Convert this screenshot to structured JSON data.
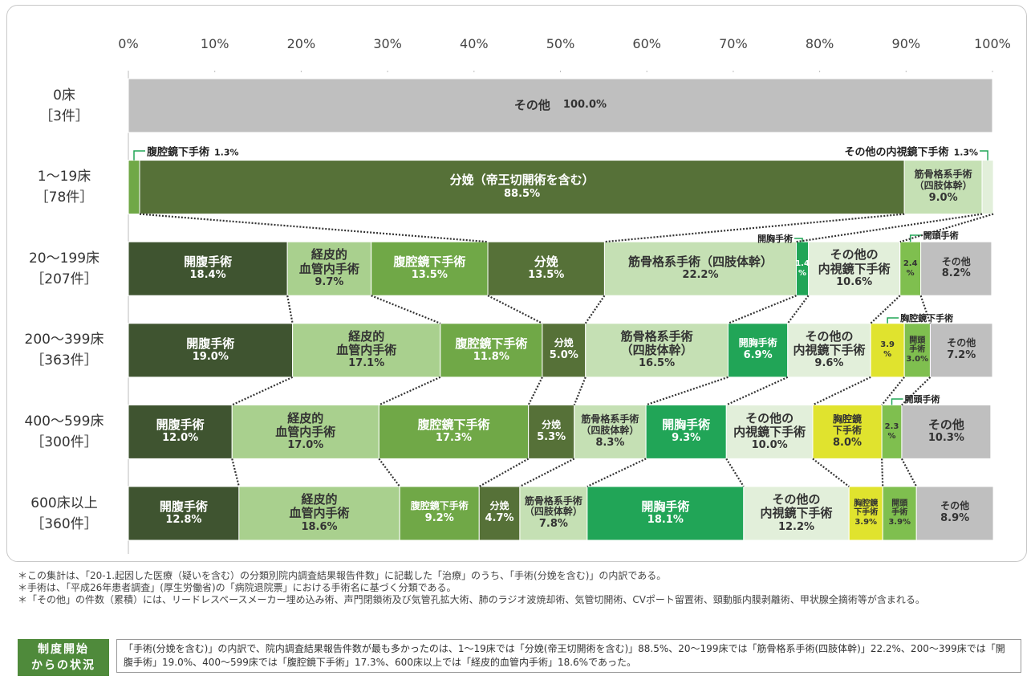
{
  "chart_data": {
    "type": "stacked-bar-horizontal",
    "categories": [
      "0床\n［3件］",
      "1～19床\n［78件］",
      "20～199床\n［207件］",
      "200～399床\n［363件］",
      "400～599床\n［300件］",
      "600床以上\n［360件］"
    ],
    "xlim": [
      0,
      100
    ],
    "xticks": [
      {
        "value": 0,
        "label": "0%"
      },
      {
        "value": 10,
        "label": "10%"
      },
      {
        "value": 20,
        "label": "20%"
      },
      {
        "value": 30,
        "label": "30%"
      },
      {
        "value": 40,
        "label": "40%"
      },
      {
        "value": 50,
        "label": "50%"
      },
      {
        "value": 60,
        "label": "60%"
      },
      {
        "value": 70,
        "label": "70%"
      },
      {
        "value": 80,
        "label": "80%"
      },
      {
        "value": 90,
        "label": "90%"
      },
      {
        "value": 100,
        "label": "100%"
      }
    ],
    "series": [
      {
        "color": "#3f5430",
        "labels": [
          null,
          null,
          "開腹手術",
          "開腹手術",
          "開腹手術",
          "開腹手術"
        ],
        "values": [
          null,
          null,
          18.4,
          19.0,
          12.0,
          12.8
        ],
        "value_labels": [
          null,
          null,
          "18.4%",
          "19.0%",
          "12.0%",
          "12.8%"
        ]
      },
      {
        "color": "#a9d08e",
        "labels": [
          null,
          null,
          "経皮的\n血管内手術",
          "経皮的\n血管内手術",
          "経皮的\n血管内手術",
          "経皮的\n血管内手術"
        ],
        "values": [
          null,
          null,
          9.7,
          17.1,
          17.0,
          18.6
        ],
        "value_labels": [
          null,
          null,
          "9.7%",
          "17.1%",
          "17.0%",
          "18.6%"
        ]
      },
      {
        "color": "#70a847",
        "labels": [
          null,
          "腹腔鏡下手術",
          "腹腔鏡下手術",
          "腹腔鏡下手術",
          "腹腔鏡下手術",
          "腹腔鏡下手術"
        ],
        "values": [
          null,
          1.3,
          13.5,
          11.8,
          17.3,
          9.2
        ],
        "value_labels": [
          null,
          "1.3%",
          "13.5%",
          "11.8%",
          "17.3%",
          "9.2%"
        ]
      },
      {
        "color": "#567138",
        "labels": [
          null,
          "分娩（帝王切開術を含む）",
          "分娩",
          "分娩",
          "分娩",
          "分娩"
        ],
        "values": [
          null,
          88.5,
          13.5,
          5.0,
          5.3,
          4.7
        ],
        "value_labels": [
          null,
          "88.5%",
          "13.5%",
          "5.0%",
          "5.3%",
          "4.7%"
        ]
      },
      {
        "color": "#c5e0b4",
        "labels": [
          null,
          "筋骨格系手術\n（四肢体幹）",
          "筋骨格系手術（四肢体幹）",
          "筋骨格系手術\n（四肢体幹）",
          "筋骨格系手術\n（四肢体幹）",
          "筋骨格系手術\n（四肢体幹）"
        ],
        "values": [
          null,
          9.0,
          22.2,
          16.5,
          8.3,
          7.8
        ],
        "value_labels": [
          null,
          "9.0%",
          "22.2%",
          "16.5%",
          "8.3%",
          "7.8%"
        ]
      },
      {
        "color": "#21a557",
        "labels": [
          null,
          null,
          "開胸手術",
          "開胸手術",
          "開胸手術",
          "開胸手術"
        ],
        "values": [
          null,
          null,
          1.4,
          6.9,
          9.3,
          18.1
        ],
        "value_labels": [
          null,
          null,
          "1.4\n%",
          "6.9%",
          "9.3%",
          "18.1%"
        ]
      },
      {
        "color": "#e2efda",
        "labels": [
          null,
          "その他の内視鏡下手術",
          "その他の\n内視鏡下手術",
          "その他の\n内視鏡下手術",
          "その他の\n内視鏡下手術",
          "その他の\n内視鏡下手術"
        ],
        "values": [
          null,
          1.3,
          10.6,
          9.6,
          10.0,
          12.2
        ],
        "value_labels": [
          null,
          "1.3%",
          "10.6%",
          "9.6%",
          "10.0%",
          "12.2%"
        ]
      },
      {
        "color": "#e0e32e",
        "labels": [
          null,
          null,
          null,
          "胸腔鏡下手術",
          "胸腔鏡\n下手術",
          "胸腔鏡\n下手術"
        ],
        "values": [
          null,
          null,
          null,
          3.9,
          8.0,
          3.9
        ],
        "value_labels": [
          null,
          null,
          null,
          "3.9\n%",
          "8.0%",
          "3.9%"
        ]
      },
      {
        "color": "#7fbf4f",
        "labels": [
          null,
          null,
          "開頭手術",
          "開頭\n手術",
          "開頭手術",
          "開頭\n手術"
        ],
        "values": [
          null,
          null,
          2.4,
          3.0,
          2.3,
          3.9
        ],
        "value_labels": [
          null,
          null,
          "2.4\n%",
          "3.0%",
          "2.3\n%",
          "3.9%"
        ]
      },
      {
        "color": "#bfbfbf",
        "labels": [
          "その他",
          null,
          "その他",
          "その他",
          "その他",
          "その他"
        ],
        "values": [
          100.0,
          null,
          8.2,
          7.2,
          10.3,
          8.9
        ],
        "value_labels": [
          "100.0%",
          null,
          "8.2%",
          "7.2%",
          "10.3%",
          "8.9%"
        ]
      }
    ],
    "notes": [
      "＊この集計は、「20-1.起因した医療（疑いを含む）の分類別院内調査結果報告件数」に記載した「治療」のうち、「手術(分娩を含む)」の内訳である。",
      "＊手術は、「平成26年患者調査」(厚生労働省)の「病院退院票」における手術名に基づく分類である。",
      "＊「その他」の件数（累積）には、リードレスペースメーカー埋め込み術、声門閉鎖術及び気管孔拡大術、肺のラジオ波焼却術、気管切開術、CVポート留置術、頸動脈内膜剥離術、甲状腺全摘術等が含まれる。"
    ],
    "summary_label": "制度開始\nからの状況",
    "summary_text": "「手術(分娩を含む)」の内訳で、院内調査結果報告件数が最も多かったのは、1～19床では「分娩(帝王切開術を含む)」88.5%、20～199床では「筋骨格系手術(四肢体幹)」22.2%、200～399床では「開腹手術」19.0%、400～599床では「腹腔鏡下手術」17.3%、600床以上では「経皮的血管内手術」18.6%であった。"
  }
}
